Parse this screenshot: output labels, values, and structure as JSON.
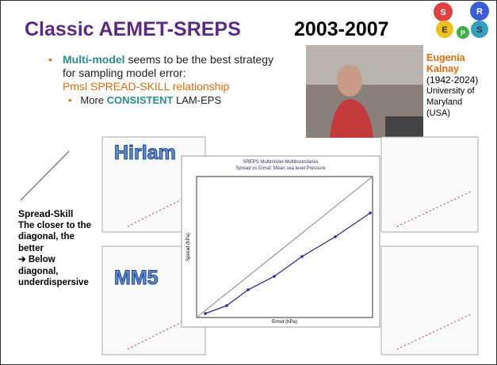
{
  "header": {
    "title": "Classic AEMET-SREPS",
    "years": "2003-2007"
  },
  "logo": {
    "letters": [
      "S",
      "R",
      "E",
      "P",
      "S"
    ]
  },
  "bullets": {
    "main": {
      "bold": "Multi-model",
      "rest": "seems to be the best strategy for sampling model error:",
      "highlight": "Pmsl SPREAD-SKILL relationship"
    },
    "sub": {
      "pre": "More",
      "bold": "CONSISTENT",
      "post": "LAM-EPS"
    }
  },
  "caption": {
    "name": "Eugenia Kalnay",
    "years": "(1942-2024)",
    "institution": "University of Maryland",
    "country": "(USA)"
  },
  "side_note": {
    "title": "Spread-Skill",
    "body": "The closer to the diagonal, the better",
    "arrow": "➔ Below diagonal, underdispersive"
  },
  "figure": {
    "labels": [
      "Hirlam",
      "MM5"
    ],
    "title": "SREPS Multimodel-Multiboundaries",
    "subtitle": "Spread vs Emsd: Mean sea level Pressure",
    "xlabel": "Emsd (hPa)",
    "ylabel": "Spread (hPa)"
  }
}
